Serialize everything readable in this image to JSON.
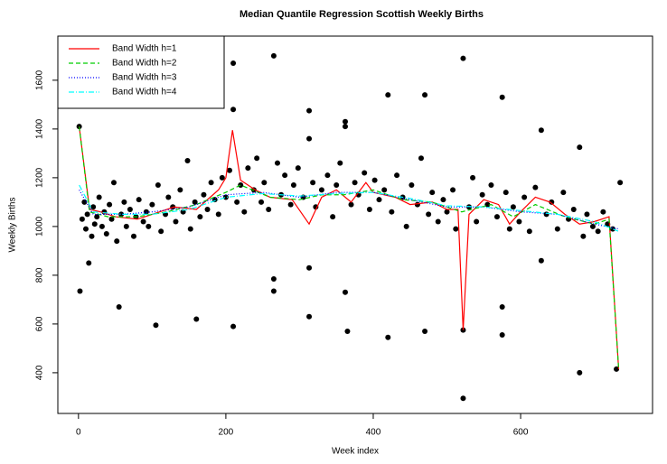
{
  "chart_data": {
    "type": "scatter",
    "title": "Median Quantile Regression Scottish Weekly Births",
    "xlabel": "Week index",
    "ylabel": "Weekly Births",
    "xlim": [
      -28,
      779
    ],
    "ylim": [
      233,
      1781
    ],
    "xticks": [
      0,
      200,
      400,
      600
    ],
    "yticks": [
      400,
      600,
      800,
      1000,
      1200,
      1400,
      1600
    ],
    "legend": "top-left",
    "series": [
      {
        "color": "#000000",
        "style": "points",
        "x": [
          2,
          1,
          14,
          55,
          105,
          160,
          210,
          210,
          210,
          265,
          265,
          265,
          313,
          313,
          313,
          313,
          362,
          362,
          362,
          365,
          420,
          420,
          470,
          470,
          522,
          522,
          522,
          575,
          575,
          575,
          628,
          628,
          680,
          680,
          730,
          735,
          5,
          8,
          10,
          12,
          18,
          20,
          22,
          25,
          28,
          32,
          35,
          38,
          42,
          45,
          48,
          52,
          58,
          62,
          65,
          70,
          75,
          78,
          82,
          88,
          92,
          95,
          100,
          108,
          112,
          118,
          122,
          128,
          132,
          138,
          142,
          148,
          152,
          158,
          165,
          170,
          175,
          180,
          185,
          190,
          195,
          200,
          205,
          215,
          220,
          225,
          230,
          238,
          242,
          248,
          252,
          258,
          270,
          275,
          280,
          288,
          292,
          298,
          305,
          318,
          322,
          330,
          338,
          345,
          350,
          355,
          370,
          375,
          380,
          388,
          395,
          402,
          408,
          415,
          425,
          432,
          440,
          445,
          452,
          460,
          465,
          475,
          480,
          488,
          495,
          500,
          508,
          512,
          530,
          535,
          540,
          548,
          555,
          560,
          568,
          580,
          585,
          590,
          598,
          605,
          612,
          620,
          635,
          642,
          650,
          658,
          665,
          672,
          685,
          690,
          698,
          705,
          712,
          718,
          725
        ],
        "values": [
          735,
          1410,
          850,
          670,
          595,
          620,
          1670,
          1480,
          590,
          1700,
          785,
          735,
          1475,
          1360,
          830,
          630,
          1430,
          1410,
          730,
          570,
          1540,
          545,
          1540,
          570,
          1690,
          575,
          295,
          1530,
          670,
          555,
          1395,
          860,
          1325,
          400,
          415,
          1180,
          1030,
          1100,
          990,
          1050,
          960,
          1080,
          1010,
          1040,
          1120,
          1000,
          1060,
          970,
          1090,
          1030,
          1180,
          940,
          1050,
          1100,
          1000,
          1070,
          960,
          1040,
          1110,
          1020,
          1060,
          1000,
          1090,
          1170,
          980,
          1050,
          1120,
          1080,
          1020,
          1150,
          1060,
          1270,
          990,
          1100,
          1040,
          1130,
          1070,
          1180,
          1110,
          1050,
          1200,
          1120,
          1230,
          1100,
          1170,
          1060,
          1240,
          1150,
          1280,
          1100,
          1180,
          1070,
          1260,
          1130,
          1210,
          1090,
          1170,
          1240,
          1120,
          1180,
          1080,
          1150,
          1210,
          1040,
          1170,
          1260,
          1090,
          1180,
          1130,
          1220,
          1070,
          1190,
          1110,
          1150,
          1060,
          1210,
          1120,
          1000,
          1170,
          1090,
          1280,
          1050,
          1140,
          1020,
          1110,
          1060,
          1150,
          990,
          1080,
          1200,
          1020,
          1130,
          1090,
          1170,
          1040,
          1140,
          990,
          1080,
          1020,
          1120,
          980,
          1160,
          1050,
          1100,
          990,
          1140,
          1030,
          1070,
          960,
          1050,
          1000,
          980,
          1060,
          1010,
          990
        ]
      },
      {
        "name": "Band Width h=1",
        "color": "#ff0000",
        "style": "solid",
        "x": [
          1,
          15,
          30,
          50,
          80,
          100,
          130,
          160,
          190,
          200,
          209,
          220,
          240,
          260,
          290,
          313,
          330,
          350,
          370,
          390,
          400,
          430,
          450,
          480,
          500,
          515,
          522,
          530,
          550,
          570,
          585,
          600,
          620,
          640,
          660,
          680,
          700,
          720,
          733
        ],
        "values": [
          1410,
          1070,
          1060,
          1040,
          1030,
          1050,
          1080,
          1070,
          1150,
          1200,
          1395,
          1190,
          1150,
          1120,
          1110,
          1010,
          1120,
          1150,
          1100,
          1180,
          1140,
          1120,
          1090,
          1100,
          1070,
          1070,
          575,
          1050,
          1110,
          1090,
          1010,
          1060,
          1120,
          1100,
          1050,
          1010,
          1020,
          1040,
          415
        ]
      },
      {
        "name": "Band Width h=2",
        "color": "#00cd00",
        "style": "dashed",
        "x": [
          1,
          15,
          40,
          80,
          120,
          160,
          200,
          220,
          260,
          300,
          330,
          360,
          400,
          440,
          480,
          520,
          560,
          590,
          620,
          660,
          700,
          720,
          733
        ],
        "values": [
          1410,
          1060,
          1040,
          1040,
          1060,
          1090,
          1140,
          1170,
          1120,
          1110,
          1130,
          1130,
          1150,
          1110,
          1100,
          1060,
          1090,
          1040,
          1090,
          1040,
          1010,
          1030,
          415
        ]
      },
      {
        "name": "Band Width h=3",
        "color": "#0000ff",
        "style": "dotted",
        "x": [
          1,
          20,
          60,
          100,
          150,
          200,
          250,
          300,
          350,
          400,
          450,
          500,
          550,
          600,
          650,
          700,
          733
        ],
        "values": [
          1150,
          1050,
          1050,
          1060,
          1080,
          1130,
          1140,
          1120,
          1140,
          1140,
          1110,
          1080,
          1080,
          1060,
          1050,
          1010,
          990
        ]
      },
      {
        "name": "Band Width h=4",
        "color": "#00ffff",
        "style": "dashdot",
        "x": [
          1,
          20,
          60,
          100,
          150,
          200,
          250,
          300,
          350,
          400,
          450,
          500,
          550,
          600,
          650,
          700,
          733
        ],
        "values": [
          1170,
          1060,
          1050,
          1050,
          1070,
          1120,
          1135,
          1125,
          1135,
          1140,
          1115,
          1085,
          1080,
          1065,
          1050,
          1020,
          980
        ]
      }
    ]
  }
}
